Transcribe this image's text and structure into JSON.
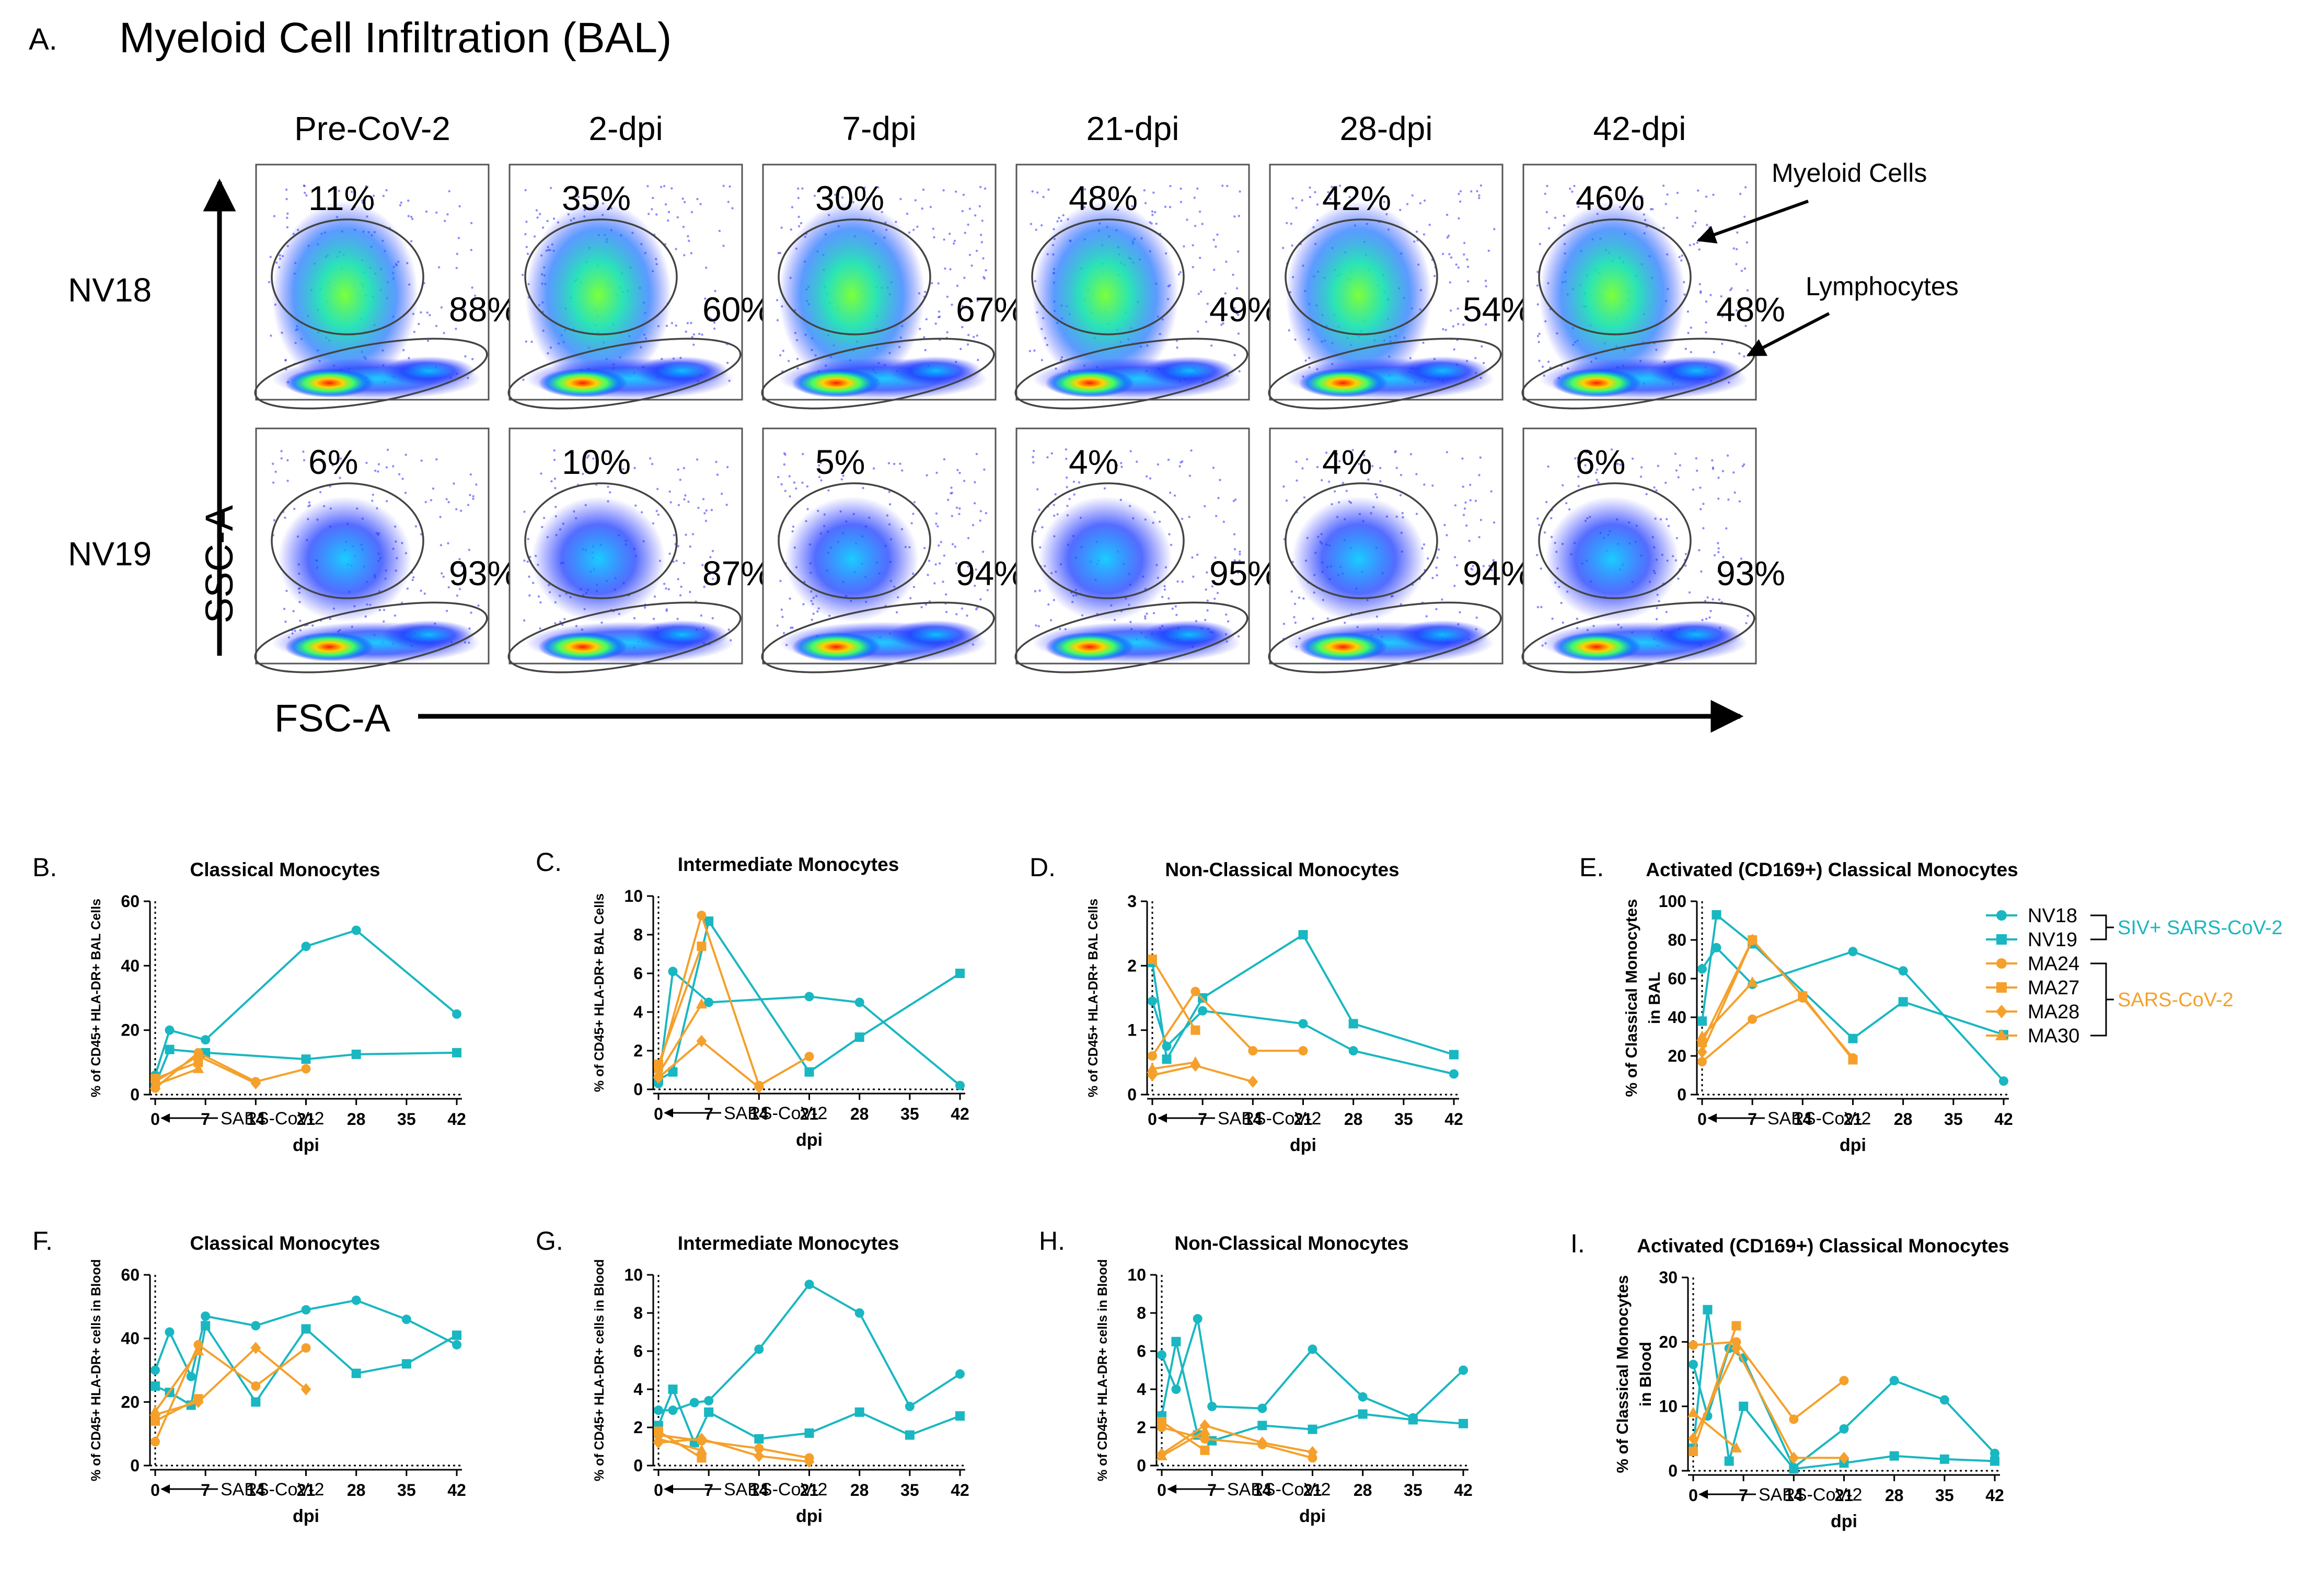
{
  "panel_a": {
    "letter": "A.",
    "title": "Myeloid Cell Infiltration (BAL)",
    "columns": [
      "Pre-CoV-2",
      "2-dpi",
      "7-dpi",
      "21-dpi",
      "28-dpi",
      "42-dpi"
    ],
    "rows": [
      {
        "label": "NV18",
        "myeloid": [
          "11%",
          "35%",
          "30%",
          "48%",
          "42%",
          "46%"
        ],
        "lymph": [
          "88%",
          "60%",
          "67%",
          "49%",
          "54%",
          "48%"
        ]
      },
      {
        "label": "NV19",
        "myeloid": [
          "6%",
          "10%",
          "5%",
          "4%",
          "4%",
          "6%"
        ],
        "lymph": [
          "93%",
          "87%",
          "94%",
          "95%",
          "94%",
          "93%"
        ]
      }
    ],
    "y_axis_label": "SSC-A",
    "x_axis_label": "FSC-A",
    "annotation_myeloid": "Myeloid Cells",
    "annotation_lymph": "Lymphocytes"
  },
  "legend": {
    "entries": [
      {
        "name": "NV18",
        "marker": "circle",
        "color": "#19B7C1"
      },
      {
        "name": "NV19",
        "marker": "square",
        "color": "#19B7C1"
      },
      {
        "name": "MA24",
        "marker": "circle",
        "color": "#F5A02B"
      },
      {
        "name": "MA27",
        "marker": "square",
        "color": "#F5A02B"
      },
      {
        "name": "MA28",
        "marker": "diamond",
        "color": "#F5A02B"
      },
      {
        "name": "MA30",
        "marker": "triangle",
        "color": "#F5A02B"
      }
    ],
    "group1": "SIV+ SARS-CoV-2",
    "group2": "SARS-CoV-2"
  },
  "colors": {
    "siv": "#19B7C1",
    "sars": "#F5A02B",
    "group1_text": "#19B7C1",
    "group2_text": "#F5A02B"
  },
  "chart_data": [
    {
      "letter": "B.",
      "type": "line",
      "title": "Classical Monocytes",
      "xlabel": "dpi",
      "ylabel": [
        "% of CD45+ HLA-DR+ BAL Cells"
      ],
      "ylim": [
        0,
        60
      ],
      "yticks": [
        0,
        20,
        40,
        60
      ],
      "xticks": [
        0,
        7,
        14,
        21,
        28,
        35,
        42
      ],
      "arrow_text": "SARS-CoV-2",
      "series": [
        {
          "name": "NV18",
          "x": [
            0,
            2,
            7,
            21,
            28,
            42
          ],
          "y": [
            6,
            20,
            17,
            46,
            51,
            25
          ]
        },
        {
          "name": "NV19",
          "x": [
            0,
            2,
            7,
            21,
            28,
            42
          ],
          "y": [
            3,
            14,
            13,
            11,
            12.5,
            13
          ]
        },
        {
          "name": "MA24",
          "x": [
            0,
            6,
            14,
            21
          ],
          "y": [
            2,
            13,
            4,
            8
          ]
        },
        {
          "name": "MA27",
          "x": [
            0,
            6
          ],
          "y": [
            5,
            10
          ]
        },
        {
          "name": "MA28",
          "x": [
            0,
            6,
            14
          ],
          "y": [
            4,
            12,
            3.5
          ]
        },
        {
          "name": "MA30",
          "x": [
            0,
            6
          ],
          "y": [
            3,
            8
          ]
        }
      ]
    },
    {
      "letter": "C.",
      "type": "line",
      "title": "Intermediate Monocytes",
      "xlabel": "dpi",
      "ylabel": [
        "% of CD45+ HLA-DR+ BAL Cells"
      ],
      "ylim": [
        0,
        10
      ],
      "yticks": [
        0,
        2,
        4,
        6,
        8,
        10
      ],
      "xticks": [
        0,
        7,
        14,
        21,
        28,
        35,
        42
      ],
      "arrow_text": "SARS-CoV-2",
      "series": [
        {
          "name": "NV18",
          "x": [
            0,
            2,
            7,
            21,
            28,
            42
          ],
          "y": [
            0.3,
            6.1,
            4.5,
            4.8,
            4.5,
            0.2
          ]
        },
        {
          "name": "NV19",
          "x": [
            0,
            2,
            7,
            21,
            28,
            42
          ],
          "y": [
            0.5,
            0.9,
            8.7,
            0.9,
            2.7,
            6.0
          ]
        },
        {
          "name": "MA24",
          "x": [
            0,
            6,
            14,
            21
          ],
          "y": [
            1.0,
            9.0,
            0.2,
            1.7
          ]
        },
        {
          "name": "MA27",
          "x": [
            0,
            6
          ],
          "y": [
            1.3,
            7.4
          ]
        },
        {
          "name": "MA28",
          "x": [
            0,
            6,
            14
          ],
          "y": [
            0.6,
            2.5,
            0.1
          ]
        },
        {
          "name": "MA30",
          "x": [
            0,
            6
          ],
          "y": [
            0.8,
            4.4
          ]
        }
      ]
    },
    {
      "letter": "D.",
      "type": "line",
      "title": "Non-Classical Monocytes",
      "xlabel": "dpi",
      "ylabel": [
        "% of CD45+ HLA-DR+ BAL Cells"
      ],
      "ylim": [
        0,
        3
      ],
      "yticks": [
        0,
        1,
        2,
        3
      ],
      "xticks": [
        0,
        7,
        14,
        21,
        28,
        35,
        42
      ],
      "arrow_text": "SARS-CoV-2",
      "series": [
        {
          "name": "NV18",
          "x": [
            0,
            2,
            7,
            21,
            28,
            42
          ],
          "y": [
            1.45,
            0.75,
            1.3,
            1.1,
            0.68,
            0.32
          ]
        },
        {
          "name": "NV19",
          "x": [
            0,
            2,
            7,
            21,
            28,
            42
          ],
          "y": [
            2.05,
            0.55,
            1.5,
            2.48,
            1.1,
            0.62
          ]
        },
        {
          "name": "MA24",
          "x": [
            0,
            6,
            14,
            21
          ],
          "y": [
            0.6,
            1.6,
            0.68,
            0.68
          ]
        },
        {
          "name": "MA27",
          "x": [
            0,
            6
          ],
          "y": [
            2.1,
            1.0
          ]
        },
        {
          "name": "MA28",
          "x": [
            0,
            6,
            14
          ],
          "y": [
            0.3,
            0.45,
            0.2
          ]
        },
        {
          "name": "MA30",
          "x": [
            0,
            6
          ],
          "y": [
            0.4,
            0.5
          ]
        }
      ]
    },
    {
      "letter": "E.",
      "type": "line",
      "title": "Activated (CD169+) Classical Monocytes",
      "xlabel": "dpi",
      "ylabel": [
        "% of Classical Monocytes",
        "in BAL"
      ],
      "ylim": [
        0,
        100
      ],
      "yticks": [
        0,
        20,
        40,
        60,
        80,
        100
      ],
      "xticks": [
        0,
        7,
        14,
        21,
        28,
        35,
        42
      ],
      "arrow_text": "SARS-CoV-2",
      "series": [
        {
          "name": "NV18",
          "x": [
            0,
            2,
            7,
            21,
            28,
            42
          ],
          "y": [
            65,
            76,
            57,
            74,
            64,
            7
          ]
        },
        {
          "name": "NV19",
          "x": [
            0,
            2,
            7,
            21,
            28,
            42
          ],
          "y": [
            38,
            93,
            78,
            29,
            48,
            31
          ]
        },
        {
          "name": "MA24",
          "x": [
            0,
            7,
            14,
            21
          ],
          "y": [
            17,
            39,
            50,
            19
          ]
        },
        {
          "name": "MA27",
          "x": [
            0,
            7,
            14,
            21
          ],
          "y": [
            27,
            80,
            51,
            18
          ]
        },
        {
          "name": "MA28",
          "x": [
            0,
            7
          ],
          "y": [
            22,
            80
          ]
        },
        {
          "name": "MA30",
          "x": [
            0,
            7
          ],
          "y": [
            30,
            58
          ]
        }
      ]
    },
    {
      "letter": "F.",
      "type": "line",
      "title": "Classical Monocytes",
      "xlabel": "dpi",
      "ylabel": [
        "% of CD45+ HLA-DR+ cells in Blood"
      ],
      "ylim": [
        0,
        60
      ],
      "yticks": [
        0,
        20,
        40,
        60
      ],
      "xticks": [
        0,
        7,
        14,
        21,
        28,
        35,
        42
      ],
      "arrow_text": "SARS-CoV-2",
      "series": [
        {
          "name": "NV18",
          "x": [
            0,
            2,
            5,
            7,
            14,
            21,
            28,
            35,
            42
          ],
          "y": [
            30,
            42,
            28,
            47,
            44,
            49,
            52,
            46,
            38
          ]
        },
        {
          "name": "NV19",
          "x": [
            0,
            2,
            5,
            7,
            14,
            21,
            28,
            35,
            42
          ],
          "y": [
            25,
            23,
            19,
            44,
            20,
            43,
            29,
            32,
            41
          ]
        },
        {
          "name": "MA24",
          "x": [
            0,
            6,
            14,
            21
          ],
          "y": [
            7.5,
            38,
            25,
            37
          ]
        },
        {
          "name": "MA27",
          "x": [
            0,
            6
          ],
          "y": [
            14,
            21
          ]
        },
        {
          "name": "MA28",
          "x": [
            0,
            6,
            14,
            21
          ],
          "y": [
            16,
            20,
            37,
            24
          ]
        },
        {
          "name": "MA30",
          "x": [
            0,
            6
          ],
          "y": [
            17,
            36
          ]
        }
      ]
    },
    {
      "letter": "G.",
      "type": "line",
      "title": "Intermediate Monocytes",
      "xlabel": "dpi",
      "ylabel": [
        "% of CD45+ HLA-DR+ cells in Blood"
      ],
      "ylim": [
        0,
        10
      ],
      "yticks": [
        0,
        2,
        4,
        6,
        8,
        10
      ],
      "xticks": [
        0,
        7,
        14,
        21,
        28,
        35,
        42
      ],
      "arrow_text": "SARS-CoV-2",
      "series": [
        {
          "name": "NV18",
          "x": [
            0,
            2,
            5,
            7,
            14,
            21,
            28,
            35,
            42
          ],
          "y": [
            2.9,
            2.9,
            3.3,
            3.4,
            6.1,
            9.5,
            8.0,
            3.1,
            4.8
          ]
        },
        {
          "name": "NV19",
          "x": [
            0,
            2,
            5,
            7,
            14,
            21,
            28,
            35,
            42
          ],
          "y": [
            2.1,
            4.0,
            1.2,
            2.8,
            1.4,
            1.7,
            2.8,
            1.6,
            2.6
          ]
        },
        {
          "name": "MA24",
          "x": [
            0,
            6,
            14,
            21
          ],
          "y": [
            1.6,
            1.3,
            0.9,
            0.4
          ]
        },
        {
          "name": "MA27",
          "x": [
            0,
            6
          ],
          "y": [
            1.8,
            0.4
          ]
        },
        {
          "name": "MA28",
          "x": [
            0,
            6,
            14,
            21
          ],
          "y": [
            1.2,
            1.4,
            0.5,
            0.2
          ]
        },
        {
          "name": "MA30",
          "x": [
            0,
            6
          ],
          "y": [
            1.4,
            0.8
          ]
        }
      ]
    },
    {
      "letter": "H.",
      "type": "line",
      "title": "Non-Classical Monocytes",
      "xlabel": "dpi",
      "ylabel": [
        "% of CD45+ HLA-DR+ cells in Blood"
      ],
      "ylim": [
        0,
        10
      ],
      "yticks": [
        0,
        2,
        4,
        6,
        8,
        10
      ],
      "xticks": [
        0,
        7,
        14,
        21,
        28,
        35,
        42
      ],
      "arrow_text": "SARS-CoV-2",
      "series": [
        {
          "name": "NV18",
          "x": [
            0,
            2,
            5,
            7,
            14,
            21,
            28,
            35,
            42
          ],
          "y": [
            5.8,
            4.0,
            7.7,
            3.1,
            3.0,
            6.1,
            3.6,
            2.5,
            5.0
          ]
        },
        {
          "name": "NV19",
          "x": [
            0,
            2,
            5,
            7,
            14,
            21,
            28,
            35,
            42
          ],
          "y": [
            2.6,
            6.5,
            1.6,
            1.3,
            2.1,
            1.9,
            2.7,
            2.4,
            2.2
          ]
        },
        {
          "name": "MA24",
          "x": [
            0,
            6,
            14,
            21
          ],
          "y": [
            2.0,
            1.4,
            1.1,
            0.4
          ]
        },
        {
          "name": "MA27",
          "x": [
            0,
            6
          ],
          "y": [
            2.3,
            0.8
          ]
        },
        {
          "name": "MA28",
          "x": [
            0,
            6,
            14,
            21
          ],
          "y": [
            0.6,
            2.1,
            1.2,
            0.7
          ]
        },
        {
          "name": "MA30",
          "x": [
            0,
            6
          ],
          "y": [
            0.5,
            1.8
          ]
        }
      ]
    },
    {
      "letter": "I.",
      "type": "line",
      "title": "Activated (CD169+) Classical Monocytes",
      "xlabel": "dpi",
      "ylabel": [
        "% of Classical Monocytes",
        "in Blood"
      ],
      "ylim": [
        0,
        30
      ],
      "yticks": [
        0,
        10,
        20,
        30
      ],
      "xticks": [
        0,
        7,
        14,
        21,
        28,
        35,
        42
      ],
      "arrow_text": "SARS-CoV-2",
      "series": [
        {
          "name": "NV18",
          "x": [
            0,
            2,
            5,
            7,
            14,
            21,
            28,
            35,
            42
          ],
          "y": [
            16.5,
            8.5,
            19,
            17.5,
            0.5,
            6.5,
            14,
            11,
            2.7
          ]
        },
        {
          "name": "NV19",
          "x": [
            0,
            2,
            5,
            7,
            14,
            21,
            28,
            35,
            42
          ],
          "y": [
            3.5,
            25,
            1.5,
            10,
            0.3,
            1.2,
            2.3,
            1.8,
            1.5
          ]
        },
        {
          "name": "MA24",
          "x": [
            0,
            6,
            14,
            21
          ],
          "y": [
            19.5,
            20,
            8,
            14
          ]
        },
        {
          "name": "MA27",
          "x": [
            0,
            6
          ],
          "y": [
            3,
            22.5
          ]
        },
        {
          "name": "MA28",
          "x": [
            0,
            6,
            14,
            21
          ],
          "y": [
            5,
            19,
            2,
            2
          ]
        },
        {
          "name": "MA30",
          "x": [
            0,
            6
          ],
          "y": [
            9,
            3.5
          ]
        }
      ]
    }
  ]
}
